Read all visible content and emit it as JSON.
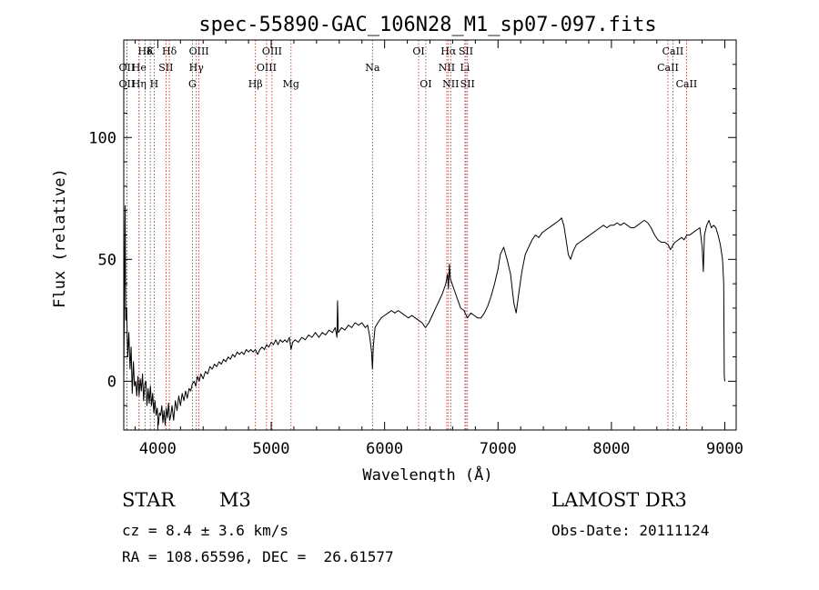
{
  "chart_data": {
    "type": "line",
    "title": "spec-55890-GAC_106N28_M1_sp07-097.fits",
    "xlabel": "Wavelength (Å)",
    "ylabel": "Flux (relative)",
    "xlim": [
      3700,
      9100
    ],
    "ylim": [
      -20,
      140
    ],
    "xticks": [
      4000,
      5000,
      6000,
      7000,
      8000,
      9000
    ],
    "yticks": [
      0,
      50,
      100
    ],
    "line_color": "#000000",
    "marker_color": "#b22222",
    "series": [
      {
        "name": "flux",
        "points": [
          [
            3700,
            0
          ],
          [
            3712,
            72
          ],
          [
            3718,
            25
          ],
          [
            3725,
            30
          ],
          [
            3735,
            10
          ],
          [
            3745,
            20
          ],
          [
            3755,
            5
          ],
          [
            3765,
            14
          ],
          [
            3775,
            -5
          ],
          [
            3785,
            8
          ],
          [
            3795,
            -2
          ],
          [
            3805,
            0
          ],
          [
            3815,
            -6
          ],
          [
            3825,
            2
          ],
          [
            3835,
            -6
          ],
          [
            3845,
            1
          ],
          [
            3855,
            -4
          ],
          [
            3865,
            3
          ],
          [
            3875,
            -8
          ],
          [
            3885,
            -1
          ],
          [
            3895,
            0
          ],
          [
            3905,
            -10
          ],
          [
            3915,
            -3
          ],
          [
            3925,
            -9
          ],
          [
            3935,
            -2
          ],
          [
            3945,
            -10
          ],
          [
            3955,
            -5
          ],
          [
            3965,
            -13
          ],
          [
            3975,
            -8
          ],
          [
            3985,
            -14
          ],
          [
            3995,
            -11
          ],
          [
            4005,
            -18
          ],
          [
            4015,
            -13
          ],
          [
            4025,
            -14
          ],
          [
            4035,
            -10
          ],
          [
            4045,
            -17
          ],
          [
            4055,
            -12
          ],
          [
            4065,
            -18
          ],
          [
            4075,
            -11
          ],
          [
            4085,
            -15
          ],
          [
            4095,
            -9
          ],
          [
            4105,
            -16
          ],
          [
            4115,
            -14
          ],
          [
            4125,
            -10
          ],
          [
            4140,
            -16
          ],
          [
            4155,
            -8
          ],
          [
            4170,
            -12
          ],
          [
            4185,
            -6
          ],
          [
            4200,
            -10
          ],
          [
            4215,
            -5
          ],
          [
            4230,
            -8
          ],
          [
            4245,
            -4
          ],
          [
            4260,
            -7
          ],
          [
            4275,
            -3
          ],
          [
            4290,
            -4
          ],
          [
            4305,
            -1
          ],
          [
            4320,
            0
          ],
          [
            4335,
            -2
          ],
          [
            4350,
            2
          ],
          [
            4365,
            0
          ],
          [
            4380,
            3
          ],
          [
            4400,
            1
          ],
          [
            4420,
            4
          ],
          [
            4440,
            3
          ],
          [
            4460,
            6
          ],
          [
            4480,
            5
          ],
          [
            4500,
            7
          ],
          [
            4520,
            6
          ],
          [
            4540,
            8
          ],
          [
            4560,
            7
          ],
          [
            4580,
            9
          ],
          [
            4600,
            8
          ],
          [
            4620,
            10
          ],
          [
            4640,
            9
          ],
          [
            4660,
            11
          ],
          [
            4680,
            10
          ],
          [
            4700,
            12
          ],
          [
            4720,
            11
          ],
          [
            4740,
            12
          ],
          [
            4760,
            11
          ],
          [
            4780,
            13
          ],
          [
            4800,
            12
          ],
          [
            4820,
            13
          ],
          [
            4840,
            12
          ],
          [
            4860,
            13
          ],
          [
            4880,
            11
          ],
          [
            4900,
            13
          ],
          [
            4920,
            14
          ],
          [
            4940,
            13
          ],
          [
            4960,
            15
          ],
          [
            4980,
            14
          ],
          [
            5000,
            16
          ],
          [
            5020,
            15
          ],
          [
            5040,
            17
          ],
          [
            5060,
            15
          ],
          [
            5080,
            17
          ],
          [
            5100,
            16
          ],
          [
            5120,
            17
          ],
          [
            5140,
            16
          ],
          [
            5160,
            18
          ],
          [
            5175,
            13
          ],
          [
            5190,
            16
          ],
          [
            5210,
            17
          ],
          [
            5240,
            16
          ],
          [
            5270,
            18
          ],
          [
            5300,
            17
          ],
          [
            5330,
            19
          ],
          [
            5360,
            18
          ],
          [
            5390,
            20
          ],
          [
            5420,
            18
          ],
          [
            5450,
            20
          ],
          [
            5480,
            19
          ],
          [
            5510,
            21
          ],
          [
            5540,
            20
          ],
          [
            5565,
            22
          ],
          [
            5580,
            18
          ],
          [
            5585,
            33
          ],
          [
            5592,
            20
          ],
          [
            5620,
            22
          ],
          [
            5650,
            21
          ],
          [
            5680,
            23
          ],
          [
            5710,
            22
          ],
          [
            5740,
            24
          ],
          [
            5770,
            23
          ],
          [
            5800,
            24
          ],
          [
            5830,
            22
          ],
          [
            5850,
            23
          ],
          [
            5870,
            18
          ],
          [
            5885,
            12
          ],
          [
            5893,
            5
          ],
          [
            5900,
            14
          ],
          [
            5915,
            22
          ],
          [
            5940,
            24
          ],
          [
            5970,
            26
          ],
          [
            6000,
            27
          ],
          [
            6030,
            28
          ],
          [
            6060,
            29
          ],
          [
            6090,
            28
          ],
          [
            6120,
            29
          ],
          [
            6150,
            28
          ],
          [
            6180,
            27
          ],
          [
            6210,
            26
          ],
          [
            6240,
            27
          ],
          [
            6270,
            26
          ],
          [
            6300,
            25
          ],
          [
            6330,
            24
          ],
          [
            6360,
            22
          ],
          [
            6390,
            24
          ],
          [
            6420,
            27
          ],
          [
            6450,
            30
          ],
          [
            6480,
            33
          ],
          [
            6510,
            36
          ],
          [
            6540,
            40
          ],
          [
            6555,
            44
          ],
          [
            6563,
            38
          ],
          [
            6572,
            48
          ],
          [
            6580,
            42
          ],
          [
            6595,
            40
          ],
          [
            6610,
            38
          ],
          [
            6640,
            34
          ],
          [
            6670,
            30
          ],
          [
            6700,
            29
          ],
          [
            6730,
            26
          ],
          [
            6760,
            28
          ],
          [
            6790,
            27
          ],
          [
            6820,
            26
          ],
          [
            6850,
            26
          ],
          [
            6880,
            28
          ],
          [
            6910,
            31
          ],
          [
            6940,
            35
          ],
          [
            6970,
            40
          ],
          [
            6990,
            44
          ],
          [
            7000,
            46
          ],
          [
            7020,
            52
          ],
          [
            7050,
            55
          ],
          [
            7080,
            50
          ],
          [
            7110,
            44
          ],
          [
            7140,
            32
          ],
          [
            7160,
            28
          ],
          [
            7180,
            35
          ],
          [
            7210,
            45
          ],
          [
            7240,
            52
          ],
          [
            7270,
            55
          ],
          [
            7300,
            58
          ],
          [
            7330,
            60
          ],
          [
            7360,
            59
          ],
          [
            7390,
            61
          ],
          [
            7420,
            62
          ],
          [
            7450,
            63
          ],
          [
            7480,
            64
          ],
          [
            7510,
            65
          ],
          [
            7540,
            66
          ],
          [
            7560,
            67
          ],
          [
            7580,
            64
          ],
          [
            7600,
            58
          ],
          [
            7620,
            52
          ],
          [
            7640,
            50
          ],
          [
            7660,
            53
          ],
          [
            7690,
            56
          ],
          [
            7720,
            57
          ],
          [
            7750,
            58
          ],
          [
            7780,
            59
          ],
          [
            7810,
            60
          ],
          [
            7840,
            61
          ],
          [
            7870,
            62
          ],
          [
            7900,
            63
          ],
          [
            7930,
            64
          ],
          [
            7960,
            63
          ],
          [
            7990,
            64
          ],
          [
            8020,
            64
          ],
          [
            8050,
            65
          ],
          [
            8080,
            64
          ],
          [
            8110,
            65
          ],
          [
            8140,
            64
          ],
          [
            8170,
            63
          ],
          [
            8200,
            63
          ],
          [
            8230,
            64
          ],
          [
            8260,
            65
          ],
          [
            8290,
            66
          ],
          [
            8320,
            65
          ],
          [
            8350,
            63
          ],
          [
            8380,
            60
          ],
          [
            8410,
            58
          ],
          [
            8440,
            57
          ],
          [
            8470,
            57
          ],
          [
            8500,
            56
          ],
          [
            8520,
            54
          ],
          [
            8545,
            56
          ],
          [
            8560,
            57
          ],
          [
            8590,
            58
          ],
          [
            8620,
            59
          ],
          [
            8640,
            58
          ],
          [
            8665,
            60
          ],
          [
            8690,
            60
          ],
          [
            8720,
            61
          ],
          [
            8750,
            62
          ],
          [
            8780,
            63
          ],
          [
            8800,
            55
          ],
          [
            8810,
            45
          ],
          [
            8820,
            60
          ],
          [
            8840,
            64
          ],
          [
            8860,
            66
          ],
          [
            8880,
            63
          ],
          [
            8900,
            64
          ],
          [
            8920,
            63
          ],
          [
            8940,
            60
          ],
          [
            8960,
            56
          ],
          [
            8980,
            50
          ],
          [
            8990,
            40
          ],
          [
            8995,
            2
          ],
          [
            9000,
            0
          ]
        ]
      }
    ],
    "line_markers": [
      {
        "label": "Hδ",
        "wl": 3889,
        "row": 0
      },
      {
        "label": "OII",
        "wl": 3727,
        "row": 1
      },
      {
        "label": "OII",
        "wl": 3727,
        "row": 2
      },
      {
        "label": "He",
        "wl": 3835,
        "row": 1
      },
      {
        "label": "Hη",
        "wl": 3835,
        "row": 2
      },
      {
        "label": "K",
        "wl": 3934,
        "row": 0
      },
      {
        "label": "SII",
        "wl": 4072,
        "row": 1
      },
      {
        "label": "H",
        "wl": 3968,
        "row": 2
      },
      {
        "label": "Hδ",
        "wl": 4102,
        "row": 0
      },
      {
        "label": "OIII",
        "wl": 4363,
        "row": 0
      },
      {
        "label": "Hγ",
        "wl": 4340,
        "row": 1
      },
      {
        "label": "G",
        "wl": 4305,
        "row": 2
      },
      {
        "label": "OIII",
        "wl": 5007,
        "row": 0
      },
      {
        "label": "OIII",
        "wl": 4959,
        "row": 1
      },
      {
        "label": "Hβ",
        "wl": 4861,
        "row": 2
      },
      {
        "label": "Mg",
        "wl": 5175,
        "row": 2
      },
      {
        "label": "Na",
        "wl": 5893,
        "row": 1
      },
      {
        "label": "OI",
        "wl": 6300,
        "row": 0
      },
      {
        "label": "OI",
        "wl": 6363,
        "row": 2
      },
      {
        "label": "Hα",
        "wl": 6563,
        "row": 0
      },
      {
        "label": "NII",
        "wl": 6548,
        "row": 1
      },
      {
        "label": "NII",
        "wl": 6583,
        "row": 2
      },
      {
        "label": "SII",
        "wl": 6717,
        "row": 0
      },
      {
        "label": "Li",
        "wl": 6708,
        "row": 1
      },
      {
        "label": "SII",
        "wl": 6731,
        "row": 2
      },
      {
        "label": "CaII",
        "wl": 8542,
        "row": 0
      },
      {
        "label": "CaII",
        "wl": 8498,
        "row": 1
      },
      {
        "label": "CaII",
        "wl": 8662,
        "row": 2
      }
    ]
  },
  "info": {
    "class": "STAR",
    "subclass": "M3",
    "survey": "LAMOST DR3",
    "redshift": "cz = 8.4 ± 3.6 km/s",
    "obs_date": "Obs-Date: 20111124",
    "coords": "RA = 108.65596, DEC =  26.61577"
  }
}
